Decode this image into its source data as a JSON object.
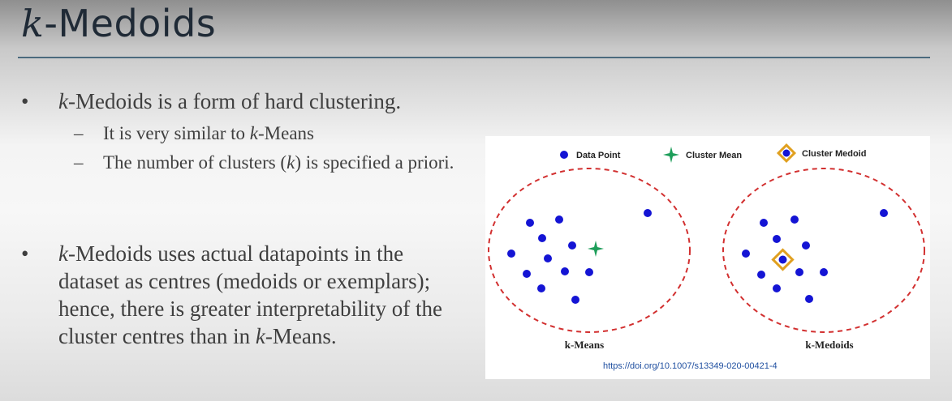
{
  "slide": {
    "title_k": "k",
    "title_rest": "-Medoids"
  },
  "bullets": [
    {
      "k": "k",
      "text": "-Medoids is a form of hard clustering.",
      "subs": [
        {
          "pre": "It is very similar to ",
          "k": "k",
          "post": "-Means"
        },
        {
          "pre": "The number of clusters (",
          "k": "k",
          "post": ") is specified a priori."
        }
      ]
    },
    {
      "k": "k",
      "text": "-Medoids uses actual datapoints in the dataset as centres (medoids or exemplars); hence, there is greater interpretability of the cluster centres than in ",
      "k2": "k",
      "text2": "-Means."
    }
  ],
  "figure": {
    "legend": {
      "data_point": "Data Point",
      "cluster_mean": "Cluster Mean",
      "cluster_medoid": "Cluster Medoid"
    },
    "panels": [
      "k-Means",
      "k-Medoids"
    ],
    "colors": {
      "data_point": "#1414d4",
      "cluster_mean": "#1e9e5a",
      "cluster_medoid": "#e0a020",
      "boundary": "#d23030"
    },
    "doi": "https://doi.org/10.1007/s13349-020-00421-4"
  }
}
